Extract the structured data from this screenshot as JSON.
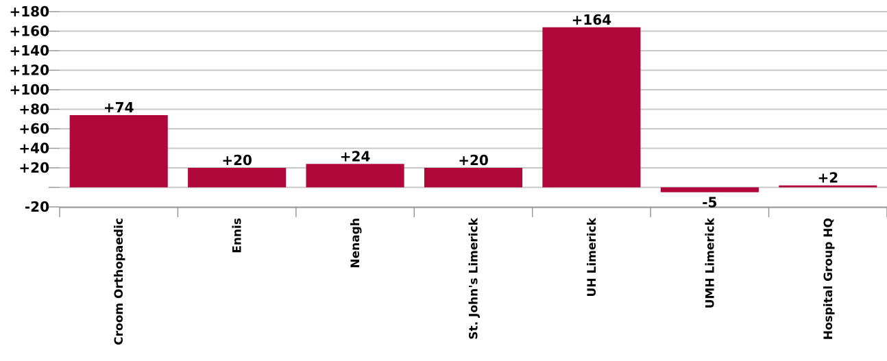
{
  "chart_data": {
    "type": "bar",
    "title": "",
    "xlabel": "",
    "ylabel": "",
    "categories": [
      "Croom Orthopaedic",
      "Ennis",
      "Nenagh",
      "St. John's Limerick",
      "UH Limerick",
      "UMH Limerick",
      "Hospital Group HQ"
    ],
    "values": [
      74,
      20,
      24,
      20,
      164,
      -5,
      2
    ],
    "value_labels": [
      "+74",
      "+20",
      "+24",
      "+20",
      "+164",
      "-5",
      "+2"
    ],
    "ylim": [
      -20,
      180
    ],
    "yticks": [
      -20,
      0,
      20,
      40,
      60,
      80,
      100,
      120,
      140,
      160,
      180
    ],
    "ytick_labels": [
      "-20",
      "",
      "+20",
      "+40",
      "+60",
      "+80",
      "+100",
      "+120",
      "+140",
      "+160",
      "+180"
    ],
    "grid": true,
    "legend": "none",
    "colors": {
      "bar": "#B0083A",
      "grid": "#C8C8C8",
      "axis": "#999999"
    }
  }
}
